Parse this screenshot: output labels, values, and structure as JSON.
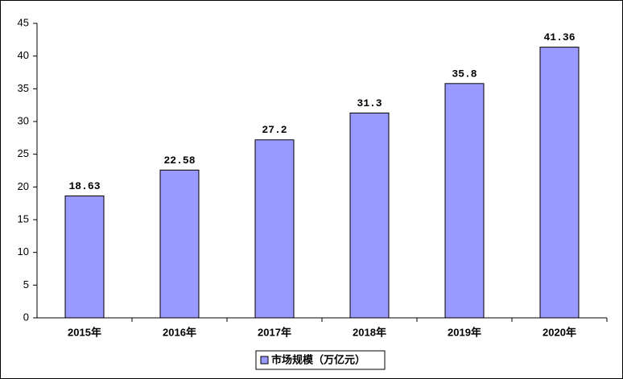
{
  "chart_data": {
    "type": "bar",
    "categories": [
      "2015年",
      "2016年",
      "2017年",
      "2018年",
      "2019年",
      "2020年"
    ],
    "series": [
      {
        "name": "市场规模（万亿元）",
        "color": "#9999ff",
        "values": [
          18.63,
          22.58,
          27.2,
          31.3,
          35.8,
          41.36
        ]
      }
    ],
    "ylim": [
      0,
      45
    ],
    "yticks": [
      0,
      5,
      10,
      15,
      20,
      25,
      30,
      35,
      40,
      45
    ],
    "grid": false,
    "legend": "bottom"
  }
}
